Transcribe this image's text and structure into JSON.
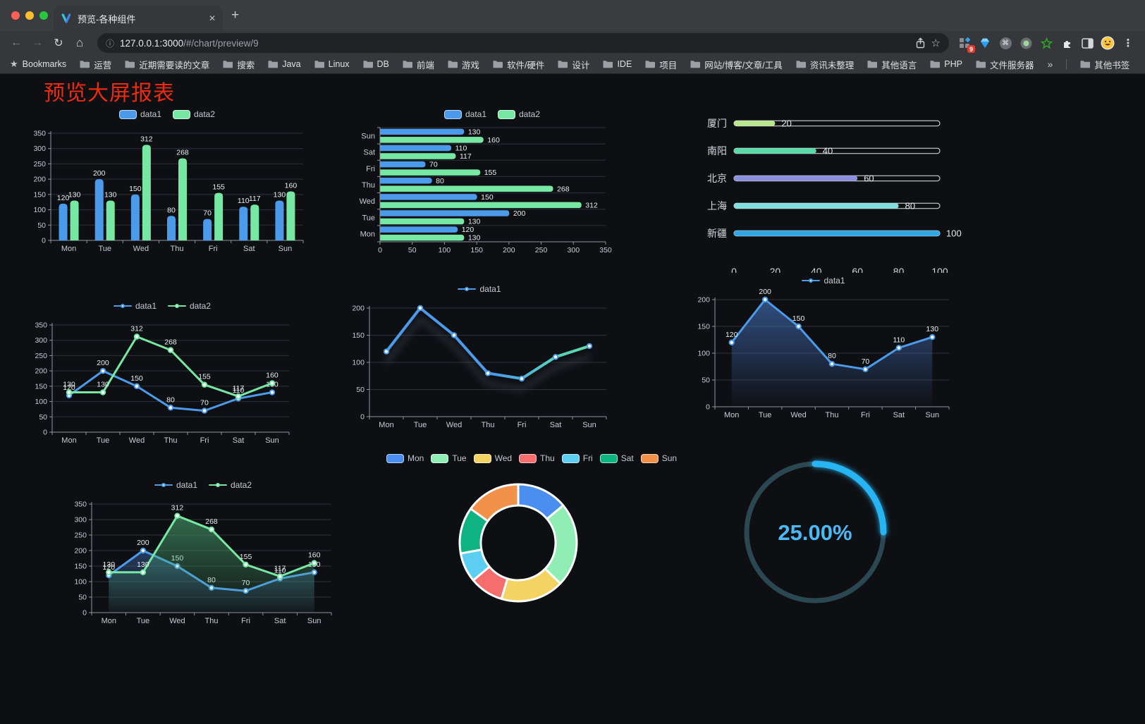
{
  "browser": {
    "tab": {
      "title": "预览-各种组件"
    },
    "url": {
      "host": "127.0.0.1:3000",
      "path": "/#/chart/preview/9"
    },
    "glyphs": {
      "back": "←",
      "forward": "→",
      "reload": "↻",
      "home": "⌂",
      "info": "ⓘ",
      "star_outline": "☆",
      "star_filled": "★",
      "close": "✕",
      "plus": "+",
      "menu": "⋮",
      "cmd": "⌘",
      "overflow": "»"
    },
    "extension_badge": "9",
    "bookmarks_label": "Bookmarks",
    "bookmarks": [
      "运营",
      "近期需要读的文章",
      "搜索",
      "Java",
      "Linux",
      "DB",
      "前端",
      "游戏",
      "软件/硬件",
      "设计",
      "IDE",
      "项目",
      "网站/博客/文章/工具",
      "资讯未整理",
      "其他语言",
      "PHP",
      "文件服务器"
    ],
    "bookmarks_overflow": "»",
    "other_bookmarks": "其他书签"
  },
  "page": {
    "title": "预览大屏报表",
    "title_color": "#ea2b10"
  },
  "chart_data": [
    {
      "id": "bar-vertical",
      "type": "bar",
      "categories": [
        "Mon",
        "Tue",
        "Wed",
        "Thu",
        "Fri",
        "Sat",
        "Sun"
      ],
      "series": [
        {
          "name": "data1",
          "color": "#4c9bea",
          "values": [
            120,
            200,
            150,
            80,
            70,
            110,
            130
          ]
        },
        {
          "name": "data2",
          "color": "#77e8a4",
          "values": [
            130,
            130,
            312,
            268,
            155,
            117,
            160
          ]
        }
      ],
      "ylim": [
        0,
        350
      ],
      "ystep": 50,
      "legend": "rect",
      "value_labels": true,
      "grid": true
    },
    {
      "id": "bar-horizontal",
      "type": "bar-horizontal",
      "categories": [
        "Mon",
        "Tue",
        "Wed",
        "Thu",
        "Fri",
        "Sat",
        "Sun"
      ],
      "series": [
        {
          "name": "data1",
          "color": "#4c9bea",
          "values": [
            120,
            200,
            150,
            80,
            70,
            110,
            130
          ]
        },
        {
          "name": "data2",
          "color": "#77e8a4",
          "values": [
            130,
            130,
            312,
            268,
            155,
            117,
            160
          ]
        }
      ],
      "xlim": [
        0,
        350
      ],
      "xstep": 50,
      "legend": "rect",
      "value_labels": true,
      "grid": true
    },
    {
      "id": "progress",
      "type": "progress",
      "xlim": [
        0,
        100
      ],
      "xticks": [
        0,
        20,
        40,
        60,
        80,
        100
      ],
      "items": [
        {
          "label": "厦门",
          "value": 20,
          "color": "#b9e58e"
        },
        {
          "label": "南阳",
          "value": 40,
          "color": "#58d9a6"
        },
        {
          "label": "北京",
          "value": 60,
          "color": "#8b90dd"
        },
        {
          "label": "上海",
          "value": 80,
          "color": "#7fdfdc"
        },
        {
          "label": "新疆",
          "value": 100,
          "color": "#31a6e4"
        }
      ]
    },
    {
      "id": "line-dual",
      "type": "line",
      "categories": [
        "Mon",
        "Tue",
        "Wed",
        "Thu",
        "Fri",
        "Sat",
        "Sun"
      ],
      "series": [
        {
          "name": "data1",
          "color": "#4c9bea",
          "values": [
            120,
            200,
            150,
            80,
            70,
            110,
            130
          ]
        },
        {
          "name": "data2",
          "color": "#77e8a4",
          "values": [
            130,
            130,
            312,
            268,
            155,
            117,
            160
          ]
        }
      ],
      "ylim": [
        0,
        350
      ],
      "ystep": 50,
      "legend": "line",
      "value_labels": true,
      "grid": true
    },
    {
      "id": "line-gradient",
      "type": "line",
      "categories": [
        "Mon",
        "Tue",
        "Wed",
        "Thu",
        "Fri",
        "Sat",
        "Sun"
      ],
      "series": [
        {
          "name": "data1",
          "color": "#4c9bea",
          "values": [
            120,
            200,
            150,
            80,
            70,
            110,
            130
          ],
          "gradient_stops": [
            [
              "0%",
              "#4c9bea"
            ],
            [
              "55%",
              "#4c9bea"
            ],
            [
              "80%",
              "#53cfc2"
            ],
            [
              "100%",
              "#5fd9a2"
            ]
          ]
        }
      ],
      "ylim": [
        0,
        200
      ],
      "ystep": 50,
      "legend": "line",
      "value_labels": false,
      "shadow": true,
      "line_width": 4,
      "grid": true
    },
    {
      "id": "line-area",
      "type": "line",
      "categories": [
        "Mon",
        "Tue",
        "Wed",
        "Thu",
        "Fri",
        "Sat",
        "Sun"
      ],
      "series": [
        {
          "name": "data1",
          "color": "#4c9bea",
          "values": [
            120,
            200,
            150,
            80,
            70,
            110,
            130
          ],
          "area": {
            "color": "#4878c8",
            "from": 0.6,
            "to": 0.02
          }
        }
      ],
      "ylim": [
        0,
        200
      ],
      "ystep": 50,
      "legend": "line",
      "value_labels": true,
      "grid": true
    },
    {
      "id": "line-dual-area",
      "type": "line",
      "categories": [
        "Mon",
        "Tue",
        "Wed",
        "Thu",
        "Fri",
        "Sat",
        "Sun"
      ],
      "series": [
        {
          "name": "data1",
          "color": "#4c9bea",
          "values": [
            120,
            200,
            150,
            80,
            70,
            110,
            130
          ],
          "area": {
            "color": "#3c6aaa",
            "from": 0.5,
            "to": 0.04
          }
        },
        {
          "name": "data2",
          "color": "#77e8a4",
          "values": [
            130,
            130,
            312,
            268,
            155,
            117,
            160
          ],
          "area": {
            "color": "#4fb478",
            "from": 0.55,
            "to": 0.04
          }
        }
      ],
      "ylim": [
        0,
        350
      ],
      "ystep": 50,
      "legend": "line",
      "value_labels": true,
      "grid": true
    },
    {
      "id": "doughnut",
      "type": "pie",
      "categories": [
        "Mon",
        "Tue",
        "Wed",
        "Thu",
        "Fri",
        "Sat",
        "Sun"
      ],
      "values": [
        120,
        200,
        150,
        80,
        70,
        110,
        130
      ],
      "colors": [
        "#4a8ef0",
        "#90eeb5",
        "#f3d361",
        "#f56d6d",
        "#5bcef2",
        "#0fb381",
        "#f2924a"
      ],
      "legend": "rect",
      "inner_radius": 53,
      "outer_radius": 83
    },
    {
      "id": "gauge",
      "type": "gauge",
      "value": 25,
      "percent_label": "25.00%",
      "color": "#28b5f2",
      "track_color": "#2b4852",
      "text_color": "#4ab9f4"
    }
  ]
}
